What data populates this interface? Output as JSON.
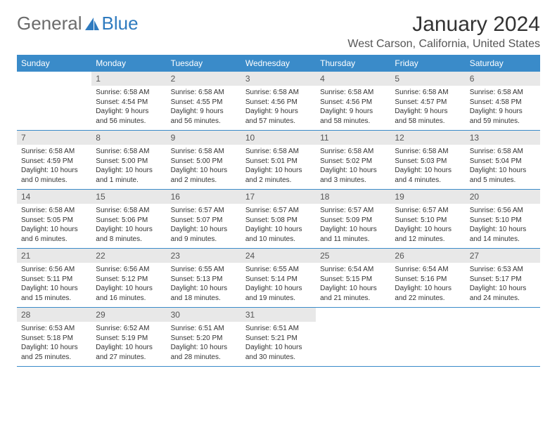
{
  "logo": {
    "text1": "General",
    "text2": "Blue",
    "shape_color": "#2f7bbf"
  },
  "title": "January 2024",
  "location": "West Carson, California, United States",
  "day_headers": [
    "Sunday",
    "Monday",
    "Tuesday",
    "Wednesday",
    "Thursday",
    "Friday",
    "Saturday"
  ],
  "colors": {
    "header_bg": "#3a8bc9",
    "header_text": "#ffffff",
    "daynum_bg": "#e8e8e8",
    "row_border": "#3a8bc9"
  },
  "weeks": [
    [
      {
        "day": "",
        "sunrise": "",
        "sunset": "",
        "daylight": ""
      },
      {
        "day": "1",
        "sunrise": "Sunrise: 6:58 AM",
        "sunset": "Sunset: 4:54 PM",
        "daylight": "Daylight: 9 hours and 56 minutes."
      },
      {
        "day": "2",
        "sunrise": "Sunrise: 6:58 AM",
        "sunset": "Sunset: 4:55 PM",
        "daylight": "Daylight: 9 hours and 56 minutes."
      },
      {
        "day": "3",
        "sunrise": "Sunrise: 6:58 AM",
        "sunset": "Sunset: 4:56 PM",
        "daylight": "Daylight: 9 hours and 57 minutes."
      },
      {
        "day": "4",
        "sunrise": "Sunrise: 6:58 AM",
        "sunset": "Sunset: 4:56 PM",
        "daylight": "Daylight: 9 hours and 58 minutes."
      },
      {
        "day": "5",
        "sunrise": "Sunrise: 6:58 AM",
        "sunset": "Sunset: 4:57 PM",
        "daylight": "Daylight: 9 hours and 58 minutes."
      },
      {
        "day": "6",
        "sunrise": "Sunrise: 6:58 AM",
        "sunset": "Sunset: 4:58 PM",
        "daylight": "Daylight: 9 hours and 59 minutes."
      }
    ],
    [
      {
        "day": "7",
        "sunrise": "Sunrise: 6:58 AM",
        "sunset": "Sunset: 4:59 PM",
        "daylight": "Daylight: 10 hours and 0 minutes."
      },
      {
        "day": "8",
        "sunrise": "Sunrise: 6:58 AM",
        "sunset": "Sunset: 5:00 PM",
        "daylight": "Daylight: 10 hours and 1 minute."
      },
      {
        "day": "9",
        "sunrise": "Sunrise: 6:58 AM",
        "sunset": "Sunset: 5:00 PM",
        "daylight": "Daylight: 10 hours and 2 minutes."
      },
      {
        "day": "10",
        "sunrise": "Sunrise: 6:58 AM",
        "sunset": "Sunset: 5:01 PM",
        "daylight": "Daylight: 10 hours and 2 minutes."
      },
      {
        "day": "11",
        "sunrise": "Sunrise: 6:58 AM",
        "sunset": "Sunset: 5:02 PM",
        "daylight": "Daylight: 10 hours and 3 minutes."
      },
      {
        "day": "12",
        "sunrise": "Sunrise: 6:58 AM",
        "sunset": "Sunset: 5:03 PM",
        "daylight": "Daylight: 10 hours and 4 minutes."
      },
      {
        "day": "13",
        "sunrise": "Sunrise: 6:58 AM",
        "sunset": "Sunset: 5:04 PM",
        "daylight": "Daylight: 10 hours and 5 minutes."
      }
    ],
    [
      {
        "day": "14",
        "sunrise": "Sunrise: 6:58 AM",
        "sunset": "Sunset: 5:05 PM",
        "daylight": "Daylight: 10 hours and 6 minutes."
      },
      {
        "day": "15",
        "sunrise": "Sunrise: 6:58 AM",
        "sunset": "Sunset: 5:06 PM",
        "daylight": "Daylight: 10 hours and 8 minutes."
      },
      {
        "day": "16",
        "sunrise": "Sunrise: 6:57 AM",
        "sunset": "Sunset: 5:07 PM",
        "daylight": "Daylight: 10 hours and 9 minutes."
      },
      {
        "day": "17",
        "sunrise": "Sunrise: 6:57 AM",
        "sunset": "Sunset: 5:08 PM",
        "daylight": "Daylight: 10 hours and 10 minutes."
      },
      {
        "day": "18",
        "sunrise": "Sunrise: 6:57 AM",
        "sunset": "Sunset: 5:09 PM",
        "daylight": "Daylight: 10 hours and 11 minutes."
      },
      {
        "day": "19",
        "sunrise": "Sunrise: 6:57 AM",
        "sunset": "Sunset: 5:10 PM",
        "daylight": "Daylight: 10 hours and 12 minutes."
      },
      {
        "day": "20",
        "sunrise": "Sunrise: 6:56 AM",
        "sunset": "Sunset: 5:10 PM",
        "daylight": "Daylight: 10 hours and 14 minutes."
      }
    ],
    [
      {
        "day": "21",
        "sunrise": "Sunrise: 6:56 AM",
        "sunset": "Sunset: 5:11 PM",
        "daylight": "Daylight: 10 hours and 15 minutes."
      },
      {
        "day": "22",
        "sunrise": "Sunrise: 6:56 AM",
        "sunset": "Sunset: 5:12 PM",
        "daylight": "Daylight: 10 hours and 16 minutes."
      },
      {
        "day": "23",
        "sunrise": "Sunrise: 6:55 AM",
        "sunset": "Sunset: 5:13 PM",
        "daylight": "Daylight: 10 hours and 18 minutes."
      },
      {
        "day": "24",
        "sunrise": "Sunrise: 6:55 AM",
        "sunset": "Sunset: 5:14 PM",
        "daylight": "Daylight: 10 hours and 19 minutes."
      },
      {
        "day": "25",
        "sunrise": "Sunrise: 6:54 AM",
        "sunset": "Sunset: 5:15 PM",
        "daylight": "Daylight: 10 hours and 21 minutes."
      },
      {
        "day": "26",
        "sunrise": "Sunrise: 6:54 AM",
        "sunset": "Sunset: 5:16 PM",
        "daylight": "Daylight: 10 hours and 22 minutes."
      },
      {
        "day": "27",
        "sunrise": "Sunrise: 6:53 AM",
        "sunset": "Sunset: 5:17 PM",
        "daylight": "Daylight: 10 hours and 24 minutes."
      }
    ],
    [
      {
        "day": "28",
        "sunrise": "Sunrise: 6:53 AM",
        "sunset": "Sunset: 5:18 PM",
        "daylight": "Daylight: 10 hours and 25 minutes."
      },
      {
        "day": "29",
        "sunrise": "Sunrise: 6:52 AM",
        "sunset": "Sunset: 5:19 PM",
        "daylight": "Daylight: 10 hours and 27 minutes."
      },
      {
        "day": "30",
        "sunrise": "Sunrise: 6:51 AM",
        "sunset": "Sunset: 5:20 PM",
        "daylight": "Daylight: 10 hours and 28 minutes."
      },
      {
        "day": "31",
        "sunrise": "Sunrise: 6:51 AM",
        "sunset": "Sunset: 5:21 PM",
        "daylight": "Daylight: 10 hours and 30 minutes."
      },
      {
        "day": "",
        "sunrise": "",
        "sunset": "",
        "daylight": ""
      },
      {
        "day": "",
        "sunrise": "",
        "sunset": "",
        "daylight": ""
      },
      {
        "day": "",
        "sunrise": "",
        "sunset": "",
        "daylight": ""
      }
    ]
  ]
}
